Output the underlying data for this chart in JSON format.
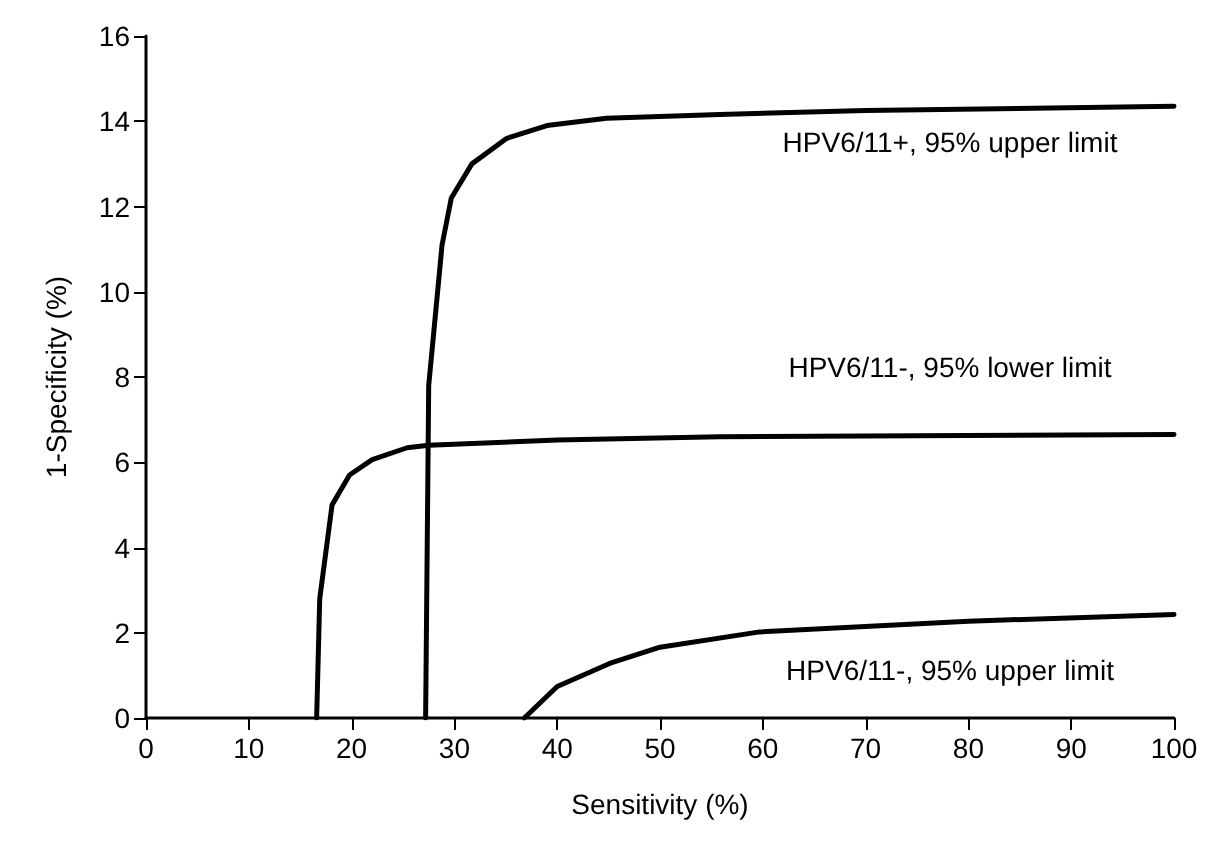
{
  "chart_data": {
    "type": "line",
    "xlabel": "Sensitivity (%)",
    "ylabel": "1-Specificity (%)",
    "xlim": [
      0,
      100
    ],
    "xticks": [
      0,
      10,
      20,
      30,
      40,
      50,
      60,
      70,
      80,
      90,
      100
    ],
    "ylim": [
      0,
      16
    ],
    "yticks": [
      0,
      2,
      4,
      6,
      8,
      10,
      12,
      14,
      16
    ],
    "grid": false,
    "marker": "none",
    "line_style": "solid",
    "series": [
      {
        "name": "HPV6/11+, 95% upper limit",
        "color": "#000000",
        "x": [
          27.2,
          27.5,
          28.8,
          29.7,
          31.7,
          35.1,
          39.0,
          44.8,
          55.8,
          70,
          100
        ],
        "values": [
          0,
          7.8,
          11.1,
          12.2,
          13.0,
          13.6,
          13.9,
          14.07,
          14.16,
          14.25,
          14.35
        ]
      },
      {
        "name": "HPV6/11-, 95% lower limit",
        "color": "#000000",
        "x": [
          16.6,
          16.9,
          18.1,
          19.8,
          22.0,
          25.4,
          27.5,
          40,
          55.8,
          100
        ],
        "values": [
          0,
          2.8,
          5.0,
          5.7,
          6.06,
          6.34,
          6.4,
          6.52,
          6.6,
          6.65
        ]
      },
      {
        "name": "HPV6/11-, 95% upper limit",
        "color": "#000000",
        "x": [
          36.8,
          40,
          45.1,
          50,
          59.7,
          80,
          100
        ],
        "values": [
          0,
          0.74,
          1.28,
          1.66,
          2.02,
          2.27,
          2.43
        ]
      }
    ]
  }
}
